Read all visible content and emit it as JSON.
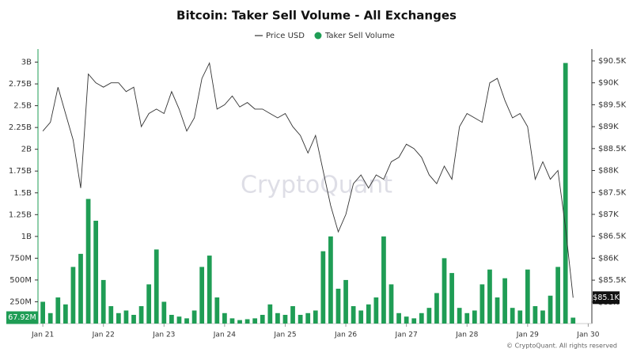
{
  "chart_data": {
    "type": "bar",
    "title": "Bitcoin: Taker Sell Volume - All Exchanges",
    "watermark": "CryptoQuant",
    "footer": "© CryptoQuant. All rights reserved",
    "x": [
      0,
      0.125,
      0.25,
      0.375,
      0.5,
      0.625,
      0.75,
      0.875,
      1,
      1.125,
      1.25,
      1.375,
      1.5,
      1.625,
      1.75,
      1.875,
      2,
      2.125,
      2.25,
      2.375,
      2.5,
      2.625,
      2.75,
      2.875,
      3,
      3.125,
      3.25,
      3.375,
      3.5,
      3.625,
      3.75,
      3.875,
      4,
      4.125,
      4.25,
      4.375,
      4.5,
      4.625,
      4.75,
      4.875,
      5,
      5.125,
      5.25,
      5.375,
      5.5,
      5.625,
      5.75,
      5.875,
      6,
      6.125,
      6.25,
      6.375,
      6.5,
      6.625,
      6.75,
      6.875,
      7,
      7.125,
      7.25,
      7.375,
      7.5,
      7.625,
      7.75,
      7.875,
      8,
      8.125,
      8.25,
      8.375,
      8.5,
      8.625,
      8.75
    ],
    "xlim": [
      -0.08,
      9.06
    ],
    "xticks": [
      {
        "value": 0,
        "label": "Jan 21"
      },
      {
        "value": 1,
        "label": "Jan 22"
      },
      {
        "value": 2,
        "label": "Jan 23"
      },
      {
        "value": 3,
        "label": "Jan 24"
      },
      {
        "value": 4,
        "label": "Jan 25"
      },
      {
        "value": 5,
        "label": "Jan 26"
      },
      {
        "value": 6,
        "label": "Jan 27"
      },
      {
        "value": 7,
        "label": "Jan 28"
      },
      {
        "value": 8,
        "label": "Jan 29"
      },
      {
        "value": 9,
        "label": "Jan 30"
      }
    ],
    "ylim": [
      0,
      3150000000
    ],
    "yticks": [
      {
        "value": 250000000,
        "label": "250M"
      },
      {
        "value": 500000000,
        "label": "500M"
      },
      {
        "value": 750000000,
        "label": "750M"
      },
      {
        "value": 1000000000,
        "label": "1B"
      },
      {
        "value": 1250000000,
        "label": "1.25B"
      },
      {
        "value": 1500000000,
        "label": "1.5B"
      },
      {
        "value": 1750000000,
        "label": "1.75B"
      },
      {
        "value": 2000000000,
        "label": "2B"
      },
      {
        "value": 2250000000,
        "label": "2.25B"
      },
      {
        "value": 2500000000,
        "label": "2.5B"
      },
      {
        "value": 2750000000,
        "label": "2.75B"
      },
      {
        "value": 3000000000,
        "label": "3B"
      }
    ],
    "y2lim": [
      84510,
      90770
    ],
    "y2ticks": [
      {
        "value": 85000,
        "label": "$85K"
      },
      {
        "value": 85500,
        "label": "$85.5K"
      },
      {
        "value": 86000,
        "label": "$86K"
      },
      {
        "value": 86500,
        "label": "$86.5K"
      },
      {
        "value": 87000,
        "label": "$87K"
      },
      {
        "value": 87500,
        "label": "$87.5K"
      },
      {
        "value": 88000,
        "label": "$88K"
      },
      {
        "value": 88500,
        "label": "$88.5K"
      },
      {
        "value": 89000,
        "label": "$89K"
      },
      {
        "value": 89500,
        "label": "$89.5K"
      },
      {
        "value": 90000,
        "label": "$90K"
      },
      {
        "value": 90500,
        "label": "$90.5K"
      }
    ],
    "series": [
      {
        "name": "Price USD",
        "type": "line",
        "axis": "y2",
        "color": "#333333",
        "values": [
          88900,
          89100,
          89900,
          89300,
          88700,
          87600,
          90200,
          90000,
          89900,
          90000,
          90000,
          89800,
          89900,
          89000,
          89300,
          89400,
          89300,
          89800,
          89400,
          88900,
          89200,
          90100,
          90450,
          89400,
          89500,
          89700,
          89450,
          89550,
          89400,
          89400,
          89300,
          89200,
          89300,
          89000,
          88800,
          88400,
          88800,
          88000,
          87200,
          86600,
          87000,
          87700,
          87900,
          87600,
          87900,
          87800,
          88200,
          88300,
          88600,
          88500,
          88300,
          87900,
          87700,
          88100,
          87800,
          89000,
          89300,
          89200,
          89100,
          90000,
          90100,
          89600,
          89200,
          89300,
          89000,
          87800,
          88200,
          87800,
          88000,
          86700,
          85100
        ]
      },
      {
        "name": "Taker Sell Volume",
        "type": "bar",
        "color": "#1f9d55",
        "values": [
          250000000.0,
          120000000.0,
          300000000.0,
          220000000.0,
          650000000.0,
          800000000.0,
          1430000000.0,
          1180000000.0,
          500000000.0,
          200000000.0,
          120000000.0,
          150000000.0,
          100000000.0,
          200000000.0,
          450000000.0,
          850000000.0,
          250000000.0,
          100000000.0,
          80000000.0,
          60000000.0,
          150000000.0,
          650000000.0,
          780000000.0,
          300000000.0,
          120000000.0,
          60000000.0,
          40000000.0,
          50000000.0,
          60000000.0,
          100000000.0,
          220000000.0,
          120000000.0,
          100000000.0,
          200000000.0,
          100000000.0,
          120000000.0,
          150000000.0,
          830000000.0,
          1000000000.0,
          400000000.0,
          500000000.0,
          200000000.0,
          150000000.0,
          220000000.0,
          300000000.0,
          1000000000.0,
          450000000.0,
          120000000.0,
          80000000.0,
          60000000.0,
          120000000.0,
          180000000.0,
          350000000.0,
          750000000.0,
          580000000.0,
          180000000.0,
          120000000.0,
          150000000.0,
          450000000.0,
          620000000.0,
          300000000.0,
          520000000.0,
          180000000.0,
          150000000.0,
          620000000.0,
          200000000.0,
          150000000.0,
          320000000.0,
          650000000.0,
          2990000000.0,
          67920000.0
        ]
      }
    ],
    "annotations": [
      {
        "text": "67.92M",
        "axis": "y",
        "value": 67920000
      },
      {
        "text": "$85.1K",
        "axis": "y2",
        "value": 85100
      }
    ]
  }
}
